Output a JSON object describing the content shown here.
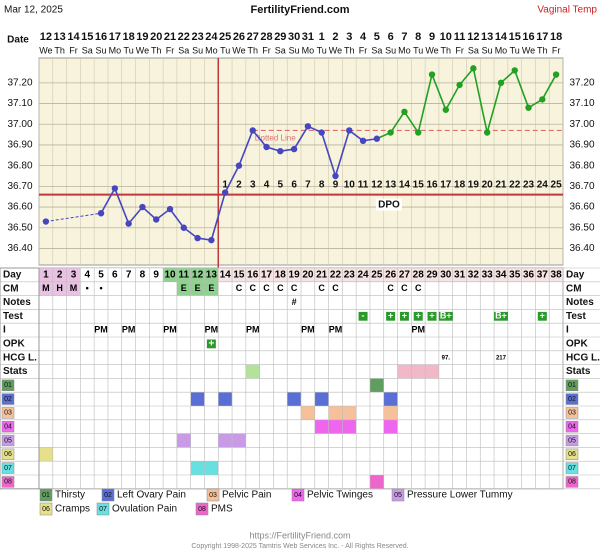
{
  "header": {
    "date": "Mar 12, 2025",
    "site": "FertilityFriend.com",
    "temp_type": "Vaginal Temp"
  },
  "chart_data": {
    "type": "line",
    "date_label": "Date",
    "dates": [
      "12",
      "13",
      "14",
      "15",
      "16",
      "17",
      "18",
      "19",
      "20",
      "21",
      "22",
      "23",
      "24",
      "25",
      "26",
      "27",
      "28",
      "29",
      "30",
      "31",
      "1",
      "2",
      "3",
      "4",
      "5",
      "6",
      "7",
      "8",
      "9",
      "10",
      "11",
      "12",
      "13",
      "14",
      "15",
      "16",
      "17",
      "18"
    ],
    "weekdays": [
      "We",
      "Th",
      "Fr",
      "Sa",
      "Su",
      "Mo",
      "Tu",
      "We",
      "Th",
      "Fr",
      "Sa",
      "Su",
      "Mo",
      "Tu",
      "We",
      "Th",
      "Fr",
      "Sa",
      "Su",
      "Mo",
      "Tu",
      "We",
      "Th",
      "Fr",
      "Sa",
      "Su",
      "Mo",
      "Tu",
      "We",
      "Th",
      "Fr",
      "Sa",
      "Su",
      "Mo",
      "Tu",
      "We",
      "Th",
      "Fr"
    ],
    "values": [
      36.53,
      null,
      null,
      null,
      36.57,
      36.69,
      36.52,
      36.6,
      36.54,
      36.59,
      36.5,
      36.45,
      36.44,
      36.67,
      36.8,
      36.97,
      36.89,
      36.87,
      36.88,
      36.99,
      36.96,
      36.75,
      36.97,
      36.92,
      36.93,
      36.96,
      37.06,
      36.96,
      37.24,
      37.07,
      37.19,
      37.27,
      36.96,
      37.2,
      37.26,
      37.08,
      37.12,
      37.24
    ],
    "color": "#4646c0",
    "post_color": "#22a022",
    "post_start_index": 25,
    "ylim": [
      36.32,
      37.32
    ],
    "yticks": [
      {
        "value": 36.4,
        "label": "36.40"
      },
      {
        "value": 36.5,
        "label": "36.50"
      },
      {
        "value": 36.6,
        "label": "36.60"
      },
      {
        "value": 36.7,
        "label": "36.70"
      },
      {
        "value": 36.8,
        "label": "36.80"
      },
      {
        "value": 36.9,
        "label": "36.90"
      },
      {
        "value": 37.0,
        "label": "37.00"
      },
      {
        "value": 37.1,
        "label": "37.10"
      },
      {
        "value": 37.2,
        "label": "37.20"
      }
    ],
    "grid": true,
    "coverline": 36.66,
    "coverline_color": "#c0393b",
    "ovulation_index": 12,
    "dpo_label": "DPO",
    "dpo": [
      null,
      null,
      null,
      null,
      null,
      null,
      null,
      null,
      null,
      null,
      null,
      null,
      null,
      1,
      2,
      3,
      4,
      5,
      6,
      7,
      8,
      9,
      10,
      11,
      12,
      13,
      14,
      15,
      16,
      17,
      18,
      19,
      20,
      21,
      22,
      23,
      24,
      25
    ],
    "dotted_line": {
      "label": "Dotted Line",
      "value": 36.97,
      "from_index": 15,
      "color": "#e07070"
    }
  },
  "table": {
    "row_labels": [
      "Day",
      "CM",
      "Notes",
      "Test",
      "I",
      "OPK",
      "HCG L.",
      "Stats"
    ],
    "cycle_days": [
      1,
      2,
      3,
      4,
      5,
      6,
      7,
      8,
      9,
      10,
      11,
      12,
      13,
      14,
      15,
      16,
      17,
      18,
      19,
      20,
      21,
      22,
      23,
      24,
      25,
      26,
      27,
      28,
      29,
      30,
      31,
      32,
      33,
      34,
      35,
      36,
      37,
      38
    ],
    "menses_days": [
      1,
      2,
      3
    ],
    "fertile_days": [
      10,
      11,
      12,
      13
    ],
    "cm": [
      "M",
      "H",
      "M",
      "•",
      "•",
      null,
      null,
      null,
      null,
      null,
      "E",
      "E",
      "E",
      null,
      "C",
      "C",
      "C",
      "C",
      "C",
      null,
      "C",
      "C",
      null,
      null,
      null,
      "C",
      "C",
      "C",
      null,
      null,
      null,
      null,
      null,
      null,
      null,
      null,
      null,
      null
    ],
    "notes": [
      null,
      null,
      null,
      null,
      null,
      null,
      null,
      null,
      null,
      null,
      null,
      null,
      null,
      null,
      null,
      null,
      null,
      null,
      "#",
      null,
      null,
      null,
      null,
      null,
      null,
      null,
      null,
      null,
      null,
      null,
      null,
      null,
      null,
      null,
      null,
      null,
      null,
      null
    ],
    "test": [
      null,
      null,
      null,
      null,
      null,
      null,
      null,
      null,
      null,
      null,
      null,
      null,
      null,
      null,
      null,
      null,
      null,
      null,
      null,
      null,
      null,
      null,
      null,
      "-",
      null,
      "+",
      "+",
      "+",
      "+",
      "B+",
      null,
      null,
      null,
      "B+",
      null,
      null,
      "+",
      null
    ],
    "i": [
      null,
      null,
      null,
      null,
      "PM",
      null,
      "PM",
      null,
      null,
      "PM",
      null,
      null,
      "PM",
      null,
      null,
      "PM",
      null,
      null,
      null,
      "PM",
      null,
      "PM",
      null,
      null,
      null,
      null,
      null,
      "PM",
      null,
      null,
      null,
      null,
      null,
      null,
      null,
      null,
      null,
      null
    ],
    "opk": [
      null,
      null,
      null,
      null,
      null,
      null,
      null,
      null,
      null,
      null,
      null,
      null,
      "+",
      null,
      null,
      null,
      null,
      null,
      null,
      null,
      null,
      null,
      null,
      null,
      null,
      null,
      null,
      null,
      null,
      null,
      null,
      null,
      null,
      null,
      null,
      null,
      null,
      null
    ],
    "hcg": [
      null,
      null,
      null,
      null,
      null,
      null,
      null,
      null,
      null,
      null,
      null,
      null,
      null,
      null,
      null,
      null,
      null,
      null,
      null,
      null,
      null,
      null,
      null,
      null,
      null,
      null,
      null,
      null,
      null,
      "97.",
      null,
      null,
      null,
      "217",
      null,
      null,
      null,
      null
    ],
    "stats_colors": [
      null,
      null,
      null,
      null,
      null,
      null,
      null,
      null,
      null,
      null,
      null,
      null,
      null,
      null,
      null,
      "#b3e39a",
      null,
      null,
      null,
      null,
      null,
      null,
      null,
      null,
      null,
      null,
      "#f2b8c8",
      "#f2b8c8",
      "#f2b8c8",
      null,
      null,
      null,
      null,
      null,
      null,
      null,
      null,
      null
    ],
    "symptoms": [
      {
        "code": "01",
        "name": "Thirsty",
        "color": "#5f9e5f",
        "days": [
          25
        ]
      },
      {
        "code": "02",
        "name": "Left Ovary Pain",
        "color": "#5a6fd6",
        "days": [
          12,
          14,
          19,
          21,
          26
        ]
      },
      {
        "code": "03",
        "name": "Pelvic Pain",
        "color": "#f5c09a",
        "days": [
          20,
          22,
          23,
          26
        ]
      },
      {
        "code": "04",
        "name": "Pelvic Twinges",
        "color": "#ee66ee",
        "days": [
          21,
          22,
          23,
          26
        ]
      },
      {
        "code": "05",
        "name": "Pressure Lower Tummy",
        "color": "#c99be6",
        "days": [
          11,
          14,
          15
        ]
      },
      {
        "code": "06",
        "name": "Cramps",
        "color": "#e6e08a",
        "days": [
          1
        ]
      },
      {
        "code": "07",
        "name": "Ovulation Pain",
        "color": "#66e0e0",
        "days": [
          12,
          13
        ]
      },
      {
        "code": "08",
        "name": "PMS",
        "color": "#ee66cc",
        "days": [
          25
        ]
      }
    ]
  },
  "footer": {
    "url": "https://FertilityFriend.com",
    "copyright": "Copyright 1998-2025 Tamtris Web Services Inc. - All Rights Reserved."
  }
}
